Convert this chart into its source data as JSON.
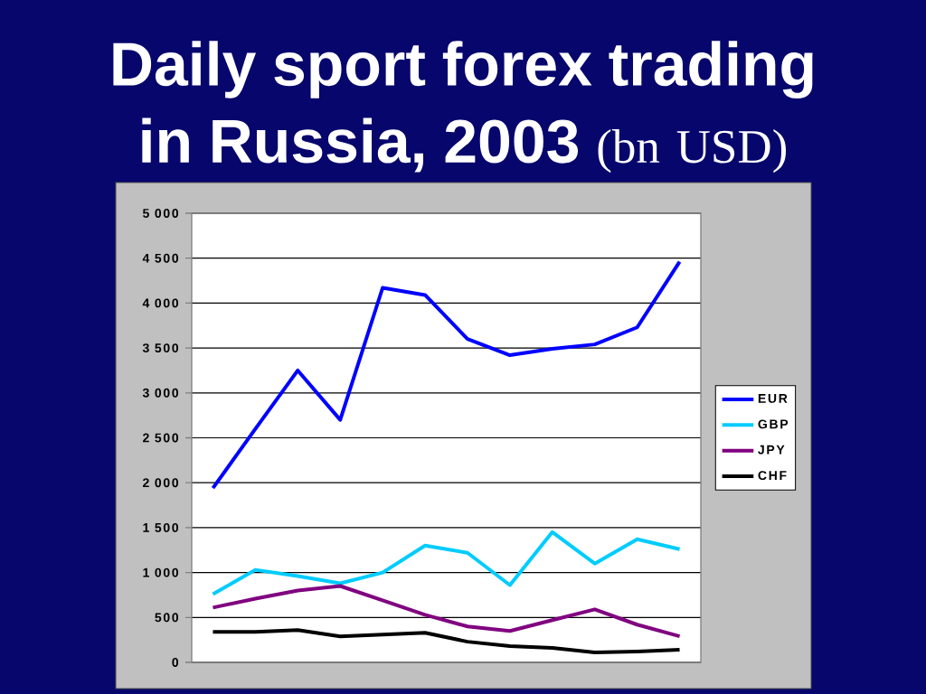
{
  "chart_data": {
    "type": "line",
    "title": "**Daily sport forex trading in Russia, 2003** (bn USD)",
    "categories": [
      null,
      null,
      null,
      null,
      null,
      null,
      null,
      null,
      null,
      null,
      null,
      null
    ],
    "series": [
      {
        "name": "EUR",
        "color": "#0000ff",
        "values": [
          1940,
          2600,
          3250,
          2700,
          4170,
          4090,
          3600,
          3420,
          3490,
          3540,
          3730,
          4460
        ]
      },
      {
        "name": "GBP",
        "color": "#00ccff",
        "values": [
          760,
          1030,
          960,
          880,
          1000,
          1300,
          1220,
          860,
          1450,
          1100,
          1370,
          1260
        ]
      },
      {
        "name": "JPY",
        "color": "#800080",
        "values": [
          610,
          710,
          800,
          850,
          690,
          530,
          400,
          350,
          470,
          590,
          420,
          290
        ]
      },
      {
        "name": "CHF",
        "color": "#000000",
        "values": [
          340,
          340,
          360,
          290,
          310,
          330,
          230,
          180,
          160,
          110,
          120,
          140
        ]
      }
    ],
    "ylim": [
      0,
      5000
    ],
    "yticks": [
      0,
      500,
      {
        "value": 1000,
        "label": "1 000"
      },
      {
        "value": 1500,
        "label": "1 500"
      },
      {
        "value": 2000,
        "label": "2 000"
      },
      {
        "value": 2500,
        "label": "2 500"
      },
      {
        "value": 3000,
        "label": "3 000"
      },
      {
        "value": 3500,
        "label": "3 500"
      },
      {
        "value": 4000,
        "label": "4 000"
      },
      {
        "value": 4500,
        "label": "4 500"
      },
      {
        "value": 5000,
        "label": "5 000"
      }
    ],
    "grid": "y",
    "legend": "right",
    "tick_labels": "y"
  }
}
